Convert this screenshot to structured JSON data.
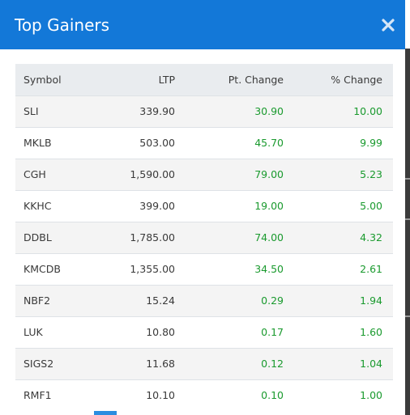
{
  "modal": {
    "title": "Top Gainers",
    "close_icon": "close-icon"
  },
  "table": {
    "headers": {
      "symbol": "Symbol",
      "ltp": "LTP",
      "pt_change": "Pt. Change",
      "pct_change": "% Change"
    },
    "rows": [
      {
        "symbol": "SLI",
        "ltp": "339.90",
        "pt_change": "30.90",
        "pct_change": "10.00"
      },
      {
        "symbol": "MKLB",
        "ltp": "503.00",
        "pt_change": "45.70",
        "pct_change": "9.99"
      },
      {
        "symbol": "CGH",
        "ltp": "1,590.00",
        "pt_change": "79.00",
        "pct_change": "5.23"
      },
      {
        "symbol": "KKHC",
        "ltp": "399.00",
        "pt_change": "19.00",
        "pct_change": "5.00"
      },
      {
        "symbol": "DDBL",
        "ltp": "1,785.00",
        "pt_change": "74.00",
        "pct_change": "4.32"
      },
      {
        "symbol": "KMCDB",
        "ltp": "1,355.00",
        "pt_change": "34.50",
        "pct_change": "2.61"
      },
      {
        "symbol": "NBF2",
        "ltp": "15.24",
        "pt_change": "0.29",
        "pct_change": "1.94"
      },
      {
        "symbol": "LUK",
        "ltp": "10.80",
        "pt_change": "0.17",
        "pct_change": "1.60"
      },
      {
        "symbol": "SIGS2",
        "ltp": "11.68",
        "pt_change": "0.12",
        "pct_change": "1.04"
      },
      {
        "symbol": "RMF1",
        "ltp": "10.10",
        "pt_change": "0.10",
        "pct_change": "1.00"
      }
    ]
  },
  "colors": {
    "header_bg": "#1378d8",
    "positive": "#1a9a2e",
    "active_page": "#2a8de0"
  }
}
